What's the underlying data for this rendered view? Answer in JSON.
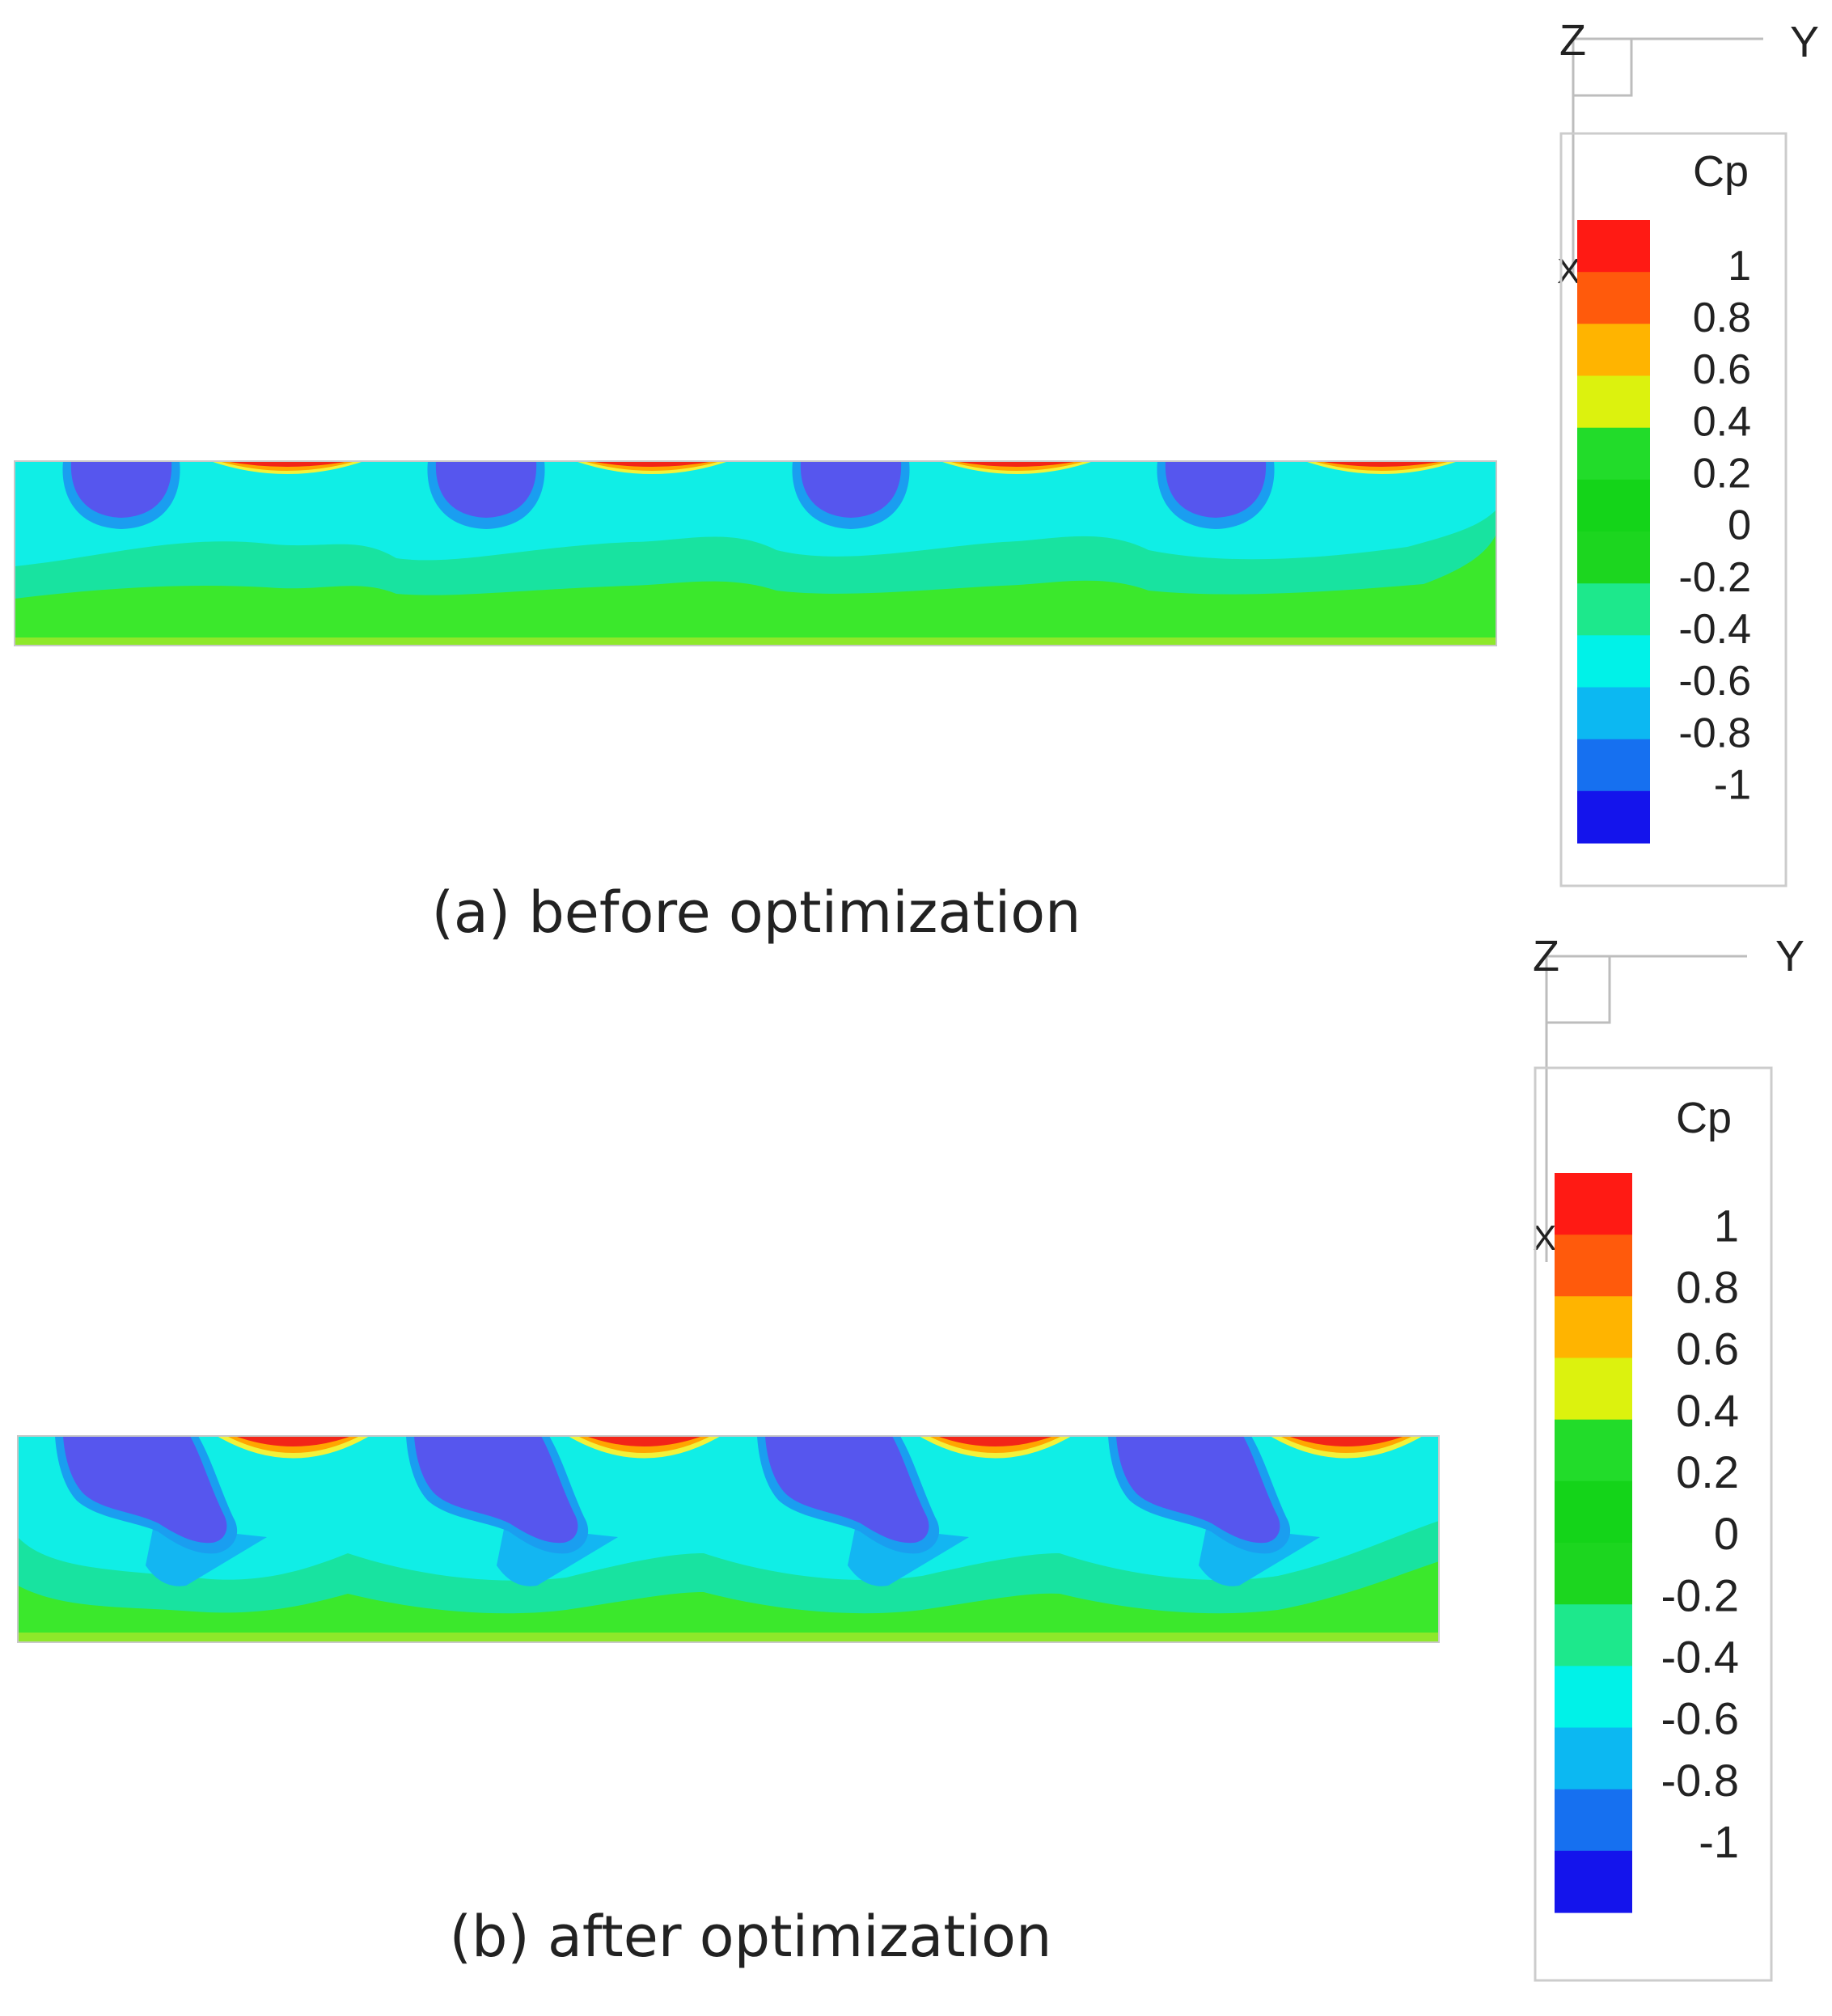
{
  "chart_data": [
    {
      "type": "heatmap",
      "panel": "a",
      "caption": "(a) before optimization",
      "legend": {
        "title": "Cp",
        "levels": [
          1,
          0.8,
          0.6,
          0.4,
          0.2,
          0,
          -0.2,
          -0.4,
          -0.6,
          -0.8,
          -1
        ],
        "tick_labels": [
          "1",
          "0.8",
          "0.6",
          "0.4",
          "0.2",
          "0",
          "-0.2",
          "-0.4",
          "-0.6",
          "-0.8",
          "-1"
        ]
      },
      "axes": {
        "z": "Z",
        "y": "Y",
        "x": "X"
      },
      "vortex_cores": 4
    },
    {
      "type": "heatmap",
      "panel": "b",
      "caption": "(b) after optimization",
      "legend": {
        "title": "Cp",
        "levels": [
          1,
          0.8,
          0.6,
          0.4,
          0.2,
          0,
          -0.2,
          -0.4,
          -0.6,
          -0.8,
          -1
        ],
        "tick_labels": [
          "1",
          "0.8",
          "0.6",
          "0.4",
          "0.2",
          "0",
          "-0.2",
          "-0.4",
          "-0.6",
          "-0.8",
          "-1"
        ]
      },
      "axes": {
        "z": "Z",
        "y": "Y",
        "x": "X"
      },
      "vortex_cores": 4
    }
  ],
  "colormap": [
    "#ff1a14",
    "#ff5a0c",
    "#ffb400",
    "#dcf20e",
    "#22dc2a",
    "#14d419",
    "#1cd61f",
    "#1de88c",
    "#00f2e8",
    "#0cb8f2",
    "#1670f0",
    "#1414ec"
  ],
  "field_colors": {
    "background": "#10eee6",
    "band_lower": "#18e3a0",
    "band_bottom": "#3be82c",
    "edge": "#8ee82a",
    "core": "#5656ee",
    "ring": "#1a9ef0",
    "wedge": "#13b6f2",
    "stag_red": "#f22518",
    "stag_orange": "#ffa500",
    "stag_yellow": "#f2f23a"
  }
}
